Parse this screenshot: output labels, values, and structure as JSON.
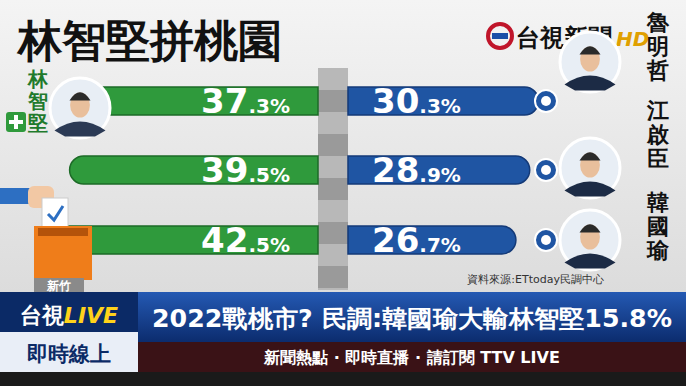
{
  "header": {
    "logo": "台視新聞",
    "logo_badge": "HD"
  },
  "chart_data": {
    "type": "bar",
    "orientation": "horizontal",
    "title": "林智堅拼桃園",
    "categories": [
      "魯明哲",
      "江啟臣",
      "韓國瑜"
    ],
    "series": [
      {
        "name": "林智堅",
        "color": "#2f9a3c",
        "values": [
          37.3,
          39.5,
          42.5
        ],
        "value_labels": [
          "37.3%",
          "39.5%",
          "42.5%"
        ]
      },
      {
        "color": "#1f55a3",
        "values": [
          30.3,
          28.9,
          26.7
        ],
        "value_labels": [
          "30.3%",
          "28.9%",
          "26.7%"
        ]
      }
    ],
    "xlim": [
      0,
      45
    ],
    "data_labels": true,
    "tick_labels": false,
    "source": "資料來源:ETtoday民調中心"
  },
  "ballot_label": "新竹",
  "ticker": {
    "badge_brand": "台視",
    "badge_live": "LIVE",
    "badge_bottom": "即時線上",
    "headline": "2022戰桃市? 民調:韓國瑜大輸林智堅15.8%",
    "crawl": "新聞熱點 · 即時直播 · 請訂閱 TTV LIVE"
  }
}
